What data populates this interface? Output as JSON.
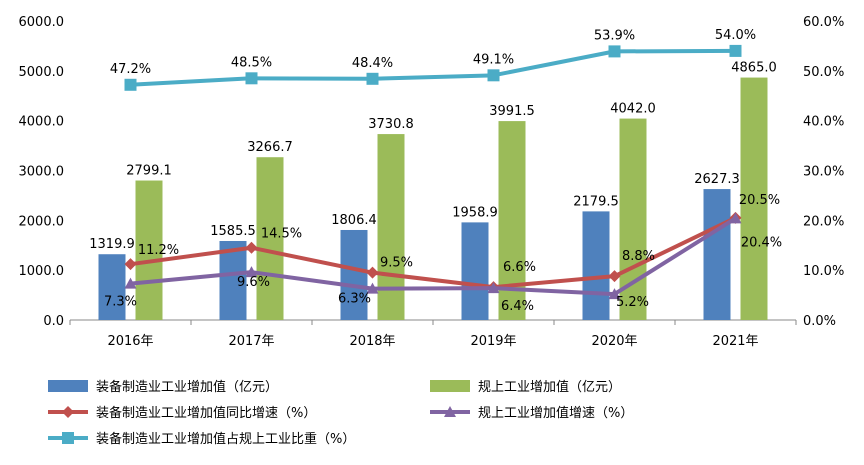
{
  "chart_data": {
    "type": "bar",
    "categories": [
      "2016年",
      "2017年",
      "2018年",
      "2019年",
      "2020年",
      "2021年"
    ],
    "y_left": {
      "ylim": [
        0,
        6000
      ],
      "ticks": [
        "0.0",
        "1000.0",
        "2000.0",
        "3000.0",
        "4000.0",
        "5000.0",
        "6000.0"
      ]
    },
    "y_right": {
      "ylim": [
        0,
        60
      ],
      "ticks": [
        "0.0%",
        "10.0%",
        "20.0%",
        "30.0%",
        "40.0%",
        "50.0%",
        "60.0%"
      ]
    },
    "series": [
      {
        "name": "装备制造业工业增加值（亿元）",
        "type": "bar",
        "axis": "left",
        "color": "#4F81BD",
        "values": [
          1319.9,
          1585.5,
          1806.4,
          1958.9,
          2179.5,
          2627.3
        ],
        "labels": [
          "1319.9",
          "1585.5",
          "1806.4",
          "1958.9",
          "2179.5",
          "2627.3"
        ]
      },
      {
        "name": "规上工业增加值（亿元）",
        "type": "bar",
        "axis": "left",
        "color": "#9BBB59",
        "values": [
          2799.1,
          3266.7,
          3730.8,
          3991.5,
          4042.0,
          4865.0
        ],
        "labels": [
          "2799.1",
          "3266.7",
          "3730.8",
          "3991.5",
          "4042.0",
          "4865.0"
        ]
      },
      {
        "name": "装备制造业工业增加值同比增速（%）",
        "type": "line",
        "axis": "right",
        "color": "#C0504D",
        "marker": "diamond",
        "values": [
          11.2,
          14.5,
          9.5,
          6.6,
          8.8,
          20.5
        ],
        "labels": [
          "11.2%",
          "14.5%",
          "9.5%",
          "6.6%",
          "8.8%",
          "20.5%"
        ]
      },
      {
        "name": "规上工业增加值增速（%）",
        "type": "line",
        "axis": "right",
        "color": "#8064A2",
        "marker": "triangle",
        "values": [
          7.3,
          9.6,
          6.3,
          6.4,
          5.2,
          20.4
        ],
        "labels": [
          "7.3%",
          "9.6%",
          "6.3%",
          "6.4%",
          "5.2%",
          "20.4%"
        ]
      },
      {
        "name": "装备制造业工业增加值占规上工业比重（%）",
        "type": "line",
        "axis": "right",
        "color": "#4BACC6",
        "marker": "square",
        "values": [
          47.2,
          48.5,
          48.4,
          49.1,
          53.9,
          54.0
        ],
        "labels": [
          "47.2%",
          "48.5%",
          "48.4%",
          "49.1%",
          "53.9%",
          "54.0%"
        ]
      }
    ],
    "legend": "bottom",
    "grid": false
  }
}
